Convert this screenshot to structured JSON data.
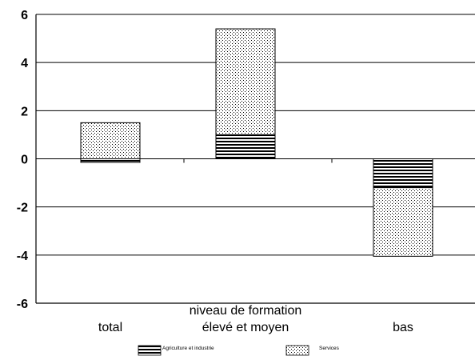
{
  "chart_data": {
    "type": "bar",
    "stacked": true,
    "title": "",
    "xlabel": "",
    "ylabel": "",
    "categories": [
      "total",
      "élevé et moyen",
      "bas"
    ],
    "category_group_label": "niveau de formation",
    "series": [
      {
        "name": "Agriculture et industrie",
        "values": [
          -0.15,
          1.0,
          -1.2
        ],
        "pattern": "horizontal-lines"
      },
      {
        "name": "Services",
        "values": [
          1.5,
          4.4,
          -2.85
        ],
        "pattern": "dots"
      }
    ],
    "ylim": [
      -6,
      6
    ],
    "yticks": [
      "6",
      "4",
      "2",
      "0",
      "-2",
      "-4",
      "-6"
    ],
    "grid": true,
    "legend_position": "bottom",
    "colors": {
      "axis": "#000000",
      "grid": "#000000",
      "fill": "#ffffff"
    }
  }
}
